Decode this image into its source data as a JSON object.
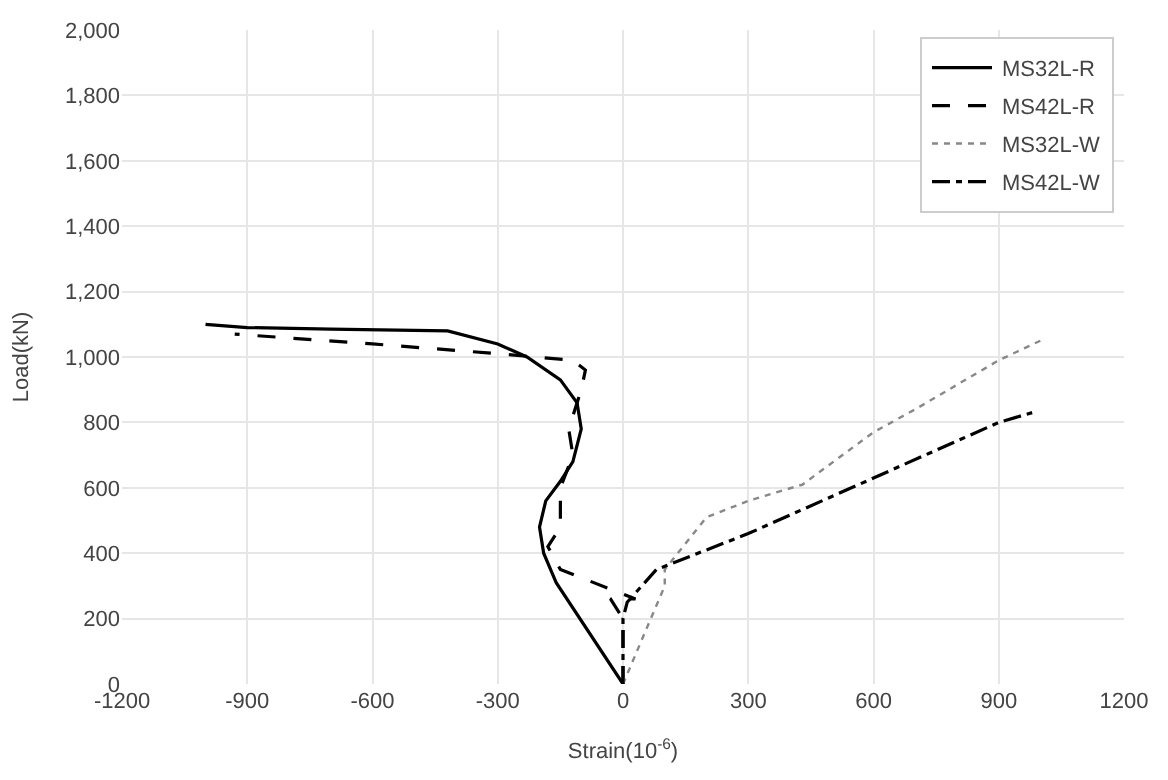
{
  "chart_data": {
    "type": "line",
    "xlabel": "Strain(10$^{-6}$)",
    "ylabel": "Load(kN)",
    "xlim": [
      -1200,
      1200
    ],
    "xticks": [
      -1200,
      -900,
      -600,
      -300,
      0,
      300,
      600,
      900,
      1200
    ],
    "ylim": [
      0,
      2000
    ],
    "yticks": [
      {
        "value": 0,
        "label": "0"
      },
      {
        "value": 200,
        "label": "200"
      },
      {
        "value": 400,
        "label": "400"
      },
      {
        "value": 600,
        "label": "600"
      },
      {
        "value": 800,
        "label": "800"
      },
      {
        "value": 1000,
        "label": "1,000"
      },
      {
        "value": 1200,
        "label": "1,200"
      },
      {
        "value": 1400,
        "label": "1,400"
      },
      {
        "value": 1600,
        "label": "1,600"
      },
      {
        "value": 1800,
        "label": "1,800"
      },
      {
        "value": 2000,
        "label": "2,000"
      }
    ],
    "grid": true,
    "legend": "top right",
    "marker": "none",
    "series": [
      {
        "name": "MS32L-R",
        "color": "#000000",
        "line_style": "solid",
        "x": [
          0,
          -160,
          -170,
          -190,
          -200,
          -185,
          -150,
          -120,
          -100,
          -110,
          -150,
          -230,
          -300,
          -420,
          -700,
          -900,
          -1000
        ],
        "values": [
          0,
          310,
          340,
          400,
          480,
          560,
          620,
          680,
          780,
          860,
          930,
          1000,
          1040,
          1080,
          1085,
          1090,
          1100
        ]
      },
      {
        "name": "MS42L-R",
        "color": "#000000",
        "line_style": "dashed",
        "x": [
          0,
          0,
          -30,
          30,
          -150,
          -180,
          -150,
          -150,
          -120,
          -130,
          -100,
          -90,
          -120,
          -300,
          -600,
          -930
        ],
        "values": [
          0,
          200,
          260,
          260,
          350,
          420,
          480,
          600,
          700,
          780,
          900,
          960,
          990,
          1010,
          1040,
          1070
        ]
      },
      {
        "name": "MS32L-W",
        "color": "#888888",
        "line_style": "dotted",
        "x": [
          0,
          100,
          100,
          200,
          300,
          430,
          600,
          700,
          900,
          1000
        ],
        "values": [
          0,
          300,
          350,
          510,
          560,
          610,
          770,
          840,
          990,
          1050
        ]
      },
      {
        "name": "MS42L-W",
        "color": "#000000",
        "line_style": "dashdot",
        "x": [
          0,
          0,
          10,
          80,
          300,
          600,
          900,
          980
        ],
        "values": [
          0,
          200,
          250,
          350,
          460,
          630,
          800,
          830
        ]
      }
    ]
  }
}
